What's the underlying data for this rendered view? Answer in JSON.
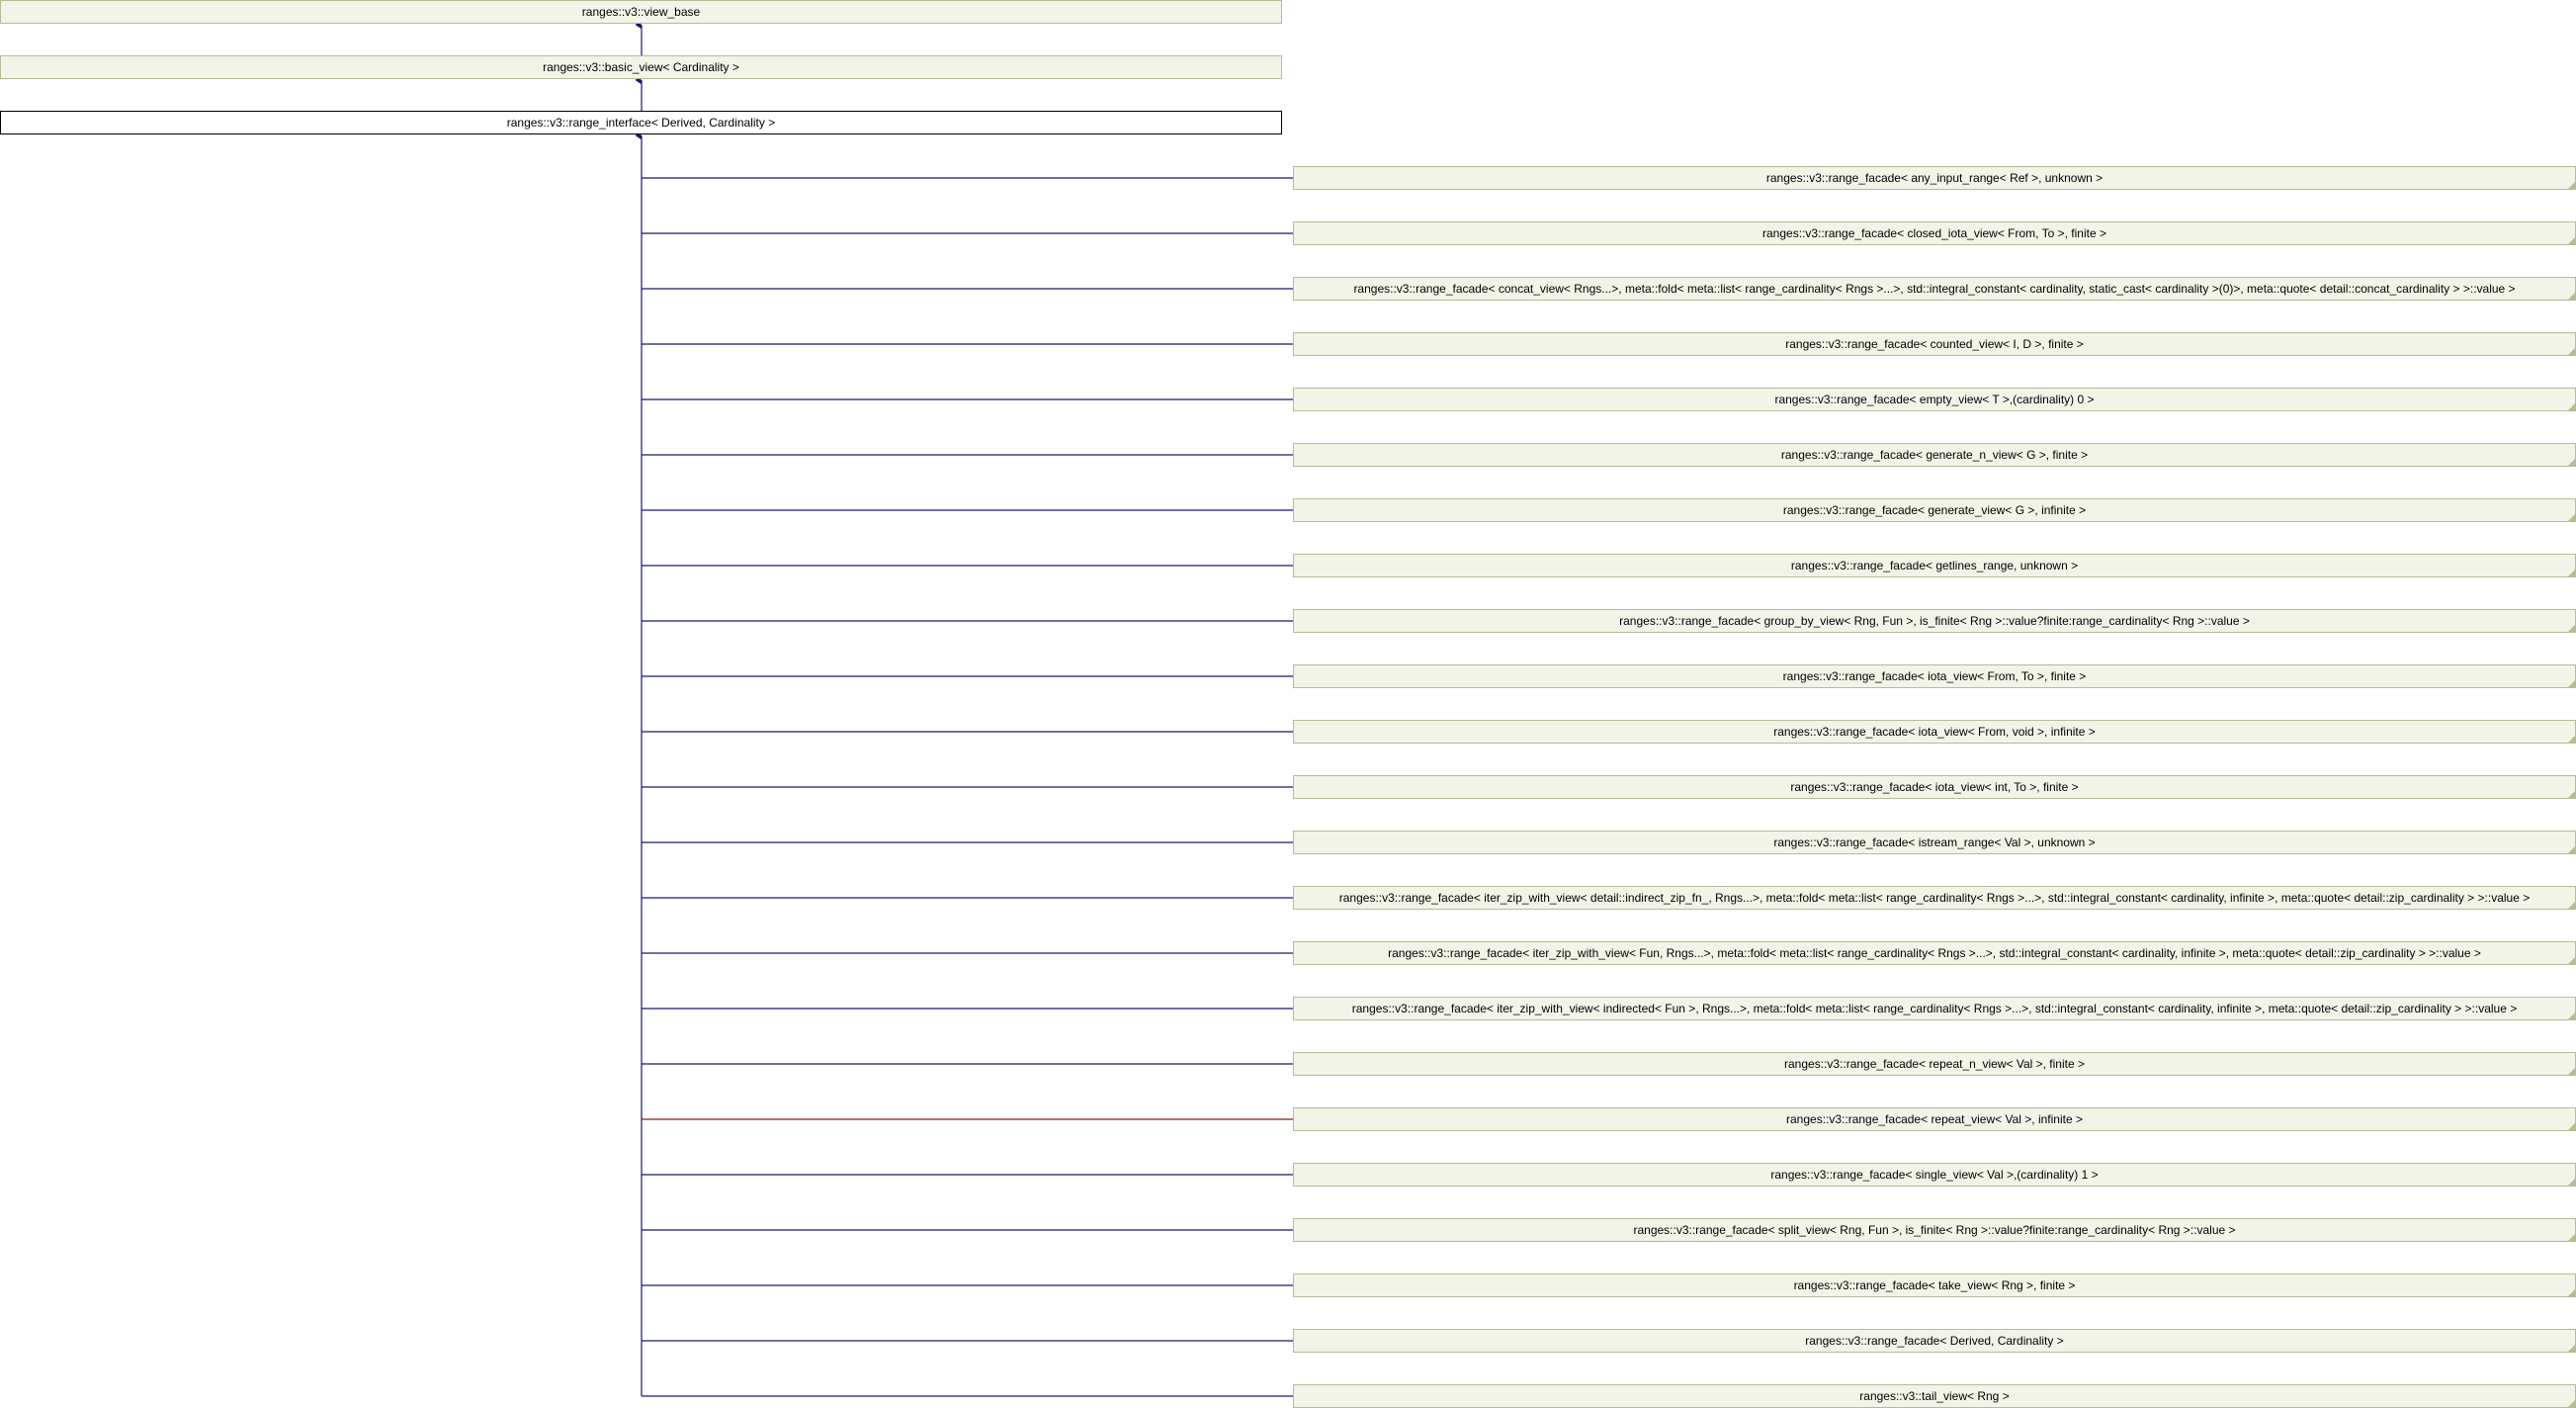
{
  "diagram": {
    "type": "inheritance-graph",
    "ancestors": [
      {
        "id": "view_base",
        "label": "ranges::v3::view_base"
      },
      {
        "id": "basic_view",
        "label": "ranges::v3::basic_view< Cardinality >"
      }
    ],
    "current": {
      "id": "range_interface",
      "label": "ranges::v3::range_interface< Derived, Cardinality >"
    },
    "children": [
      {
        "label": "ranges::v3::range_facade< any_input_range< Ref >, unknown >"
      },
      {
        "label": "ranges::v3::range_facade< closed_iota_view< From, To >, finite >"
      },
      {
        "label": "ranges::v3::range_facade< concat_view< Rngs...>, meta::fold< meta::list< range_cardinality< Rngs >...>, std::integral_constant< cardinality, static_cast< cardinality >(0)>, meta::quote< detail::concat_cardinality > >::value >"
      },
      {
        "label": "ranges::v3::range_facade< counted_view< I, D >, finite >"
      },
      {
        "label": "ranges::v3::range_facade< empty_view< T >,(cardinality) 0 >"
      },
      {
        "label": "ranges::v3::range_facade< generate_n_view< G >, finite >"
      },
      {
        "label": "ranges::v3::range_facade< generate_view< G >, infinite >"
      },
      {
        "label": "ranges::v3::range_facade< getlines_range, unknown >"
      },
      {
        "label": "ranges::v3::range_facade< group_by_view< Rng, Fun >, is_finite< Rng >::value?finite:range_cardinality< Rng >::value >"
      },
      {
        "label": "ranges::v3::range_facade< iota_view< From, To >, finite >"
      },
      {
        "label": "ranges::v3::range_facade< iota_view< From, void >, infinite >"
      },
      {
        "label": "ranges::v3::range_facade< iota_view< int, To >, finite >"
      },
      {
        "label": "ranges::v3::range_facade< istream_range< Val >, unknown >"
      },
      {
        "label": "ranges::v3::range_facade< iter_zip_with_view< detail::indirect_zip_fn_, Rngs...>, meta::fold< meta::list< range_cardinality< Rngs >...>, std::integral_constant< cardinality, infinite >, meta::quote< detail::zip_cardinality > >::value >"
      },
      {
        "label": "ranges::v3::range_facade< iter_zip_with_view< Fun, Rngs...>, meta::fold< meta::list< range_cardinality< Rngs >...>, std::integral_constant< cardinality, infinite >, meta::quote< detail::zip_cardinality > >::value >"
      },
      {
        "label": "ranges::v3::range_facade< iter_zip_with_view< indirected< Fun >, Rngs...>, meta::fold< meta::list< range_cardinality< Rngs >...>, std::integral_constant< cardinality, infinite >, meta::quote< detail::zip_cardinality > >::value >"
      },
      {
        "label": "ranges::v3::range_facade< repeat_n_view< Val >, finite >"
      },
      {
        "label": "ranges::v3::range_facade< repeat_view< Val >, infinite >",
        "edge": "template"
      },
      {
        "label": "ranges::v3::range_facade< single_view< Val >,(cardinality) 1 >"
      },
      {
        "label": "ranges::v3::range_facade< split_view< Rng, Fun >, is_finite< Rng >::value?finite:range_cardinality< Rng >::value >"
      },
      {
        "label": "ranges::v3::range_facade< take_view< Rng >, finite >"
      },
      {
        "label": "ranges::v3::range_facade< Derived, Cardinality >"
      },
      {
        "label": "ranges::v3::tail_view< Rng >"
      }
    ],
    "colors": {
      "node_fill": "#f2f4e8",
      "node_border": "#b3bd96",
      "current_border": "#000000",
      "public_edge": "#191970",
      "template_edge": "#8b1a1a"
    }
  }
}
